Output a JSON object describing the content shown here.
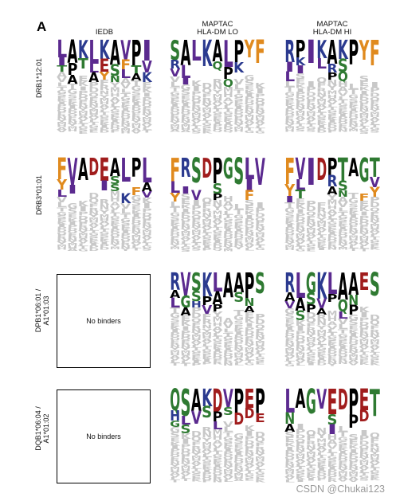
{
  "panel_letter": "A",
  "column_headers": [
    {
      "line1": "",
      "line2": "IEDB"
    },
    {
      "line1": "MAPTAC",
      "line2": "HLA-DM LO"
    },
    {
      "line1": "MAPTAC",
      "line2": "HLA-DM HI"
    }
  ],
  "rows": [
    {
      "label_line1": "DRB1*12:01",
      "label_line2": "",
      "logos": [
        {
          "top": "LAKLKAVPI",
          "second": "IPTLESFTV",
          "third": "TA AYNLAK"
        },
        {
          "top": "SALKALPYF",
          "second": "RL  QPK  ",
          "third": "VI   Q   "
        },
        {
          "top": "RPIKAKPYF",
          "second": "IK LRS   ",
          "third": "LI  PQ   "
        }
      ],
      "no_binders": false
    },
    {
      "label_line1": "DRB3*01:01",
      "label_line2": "",
      "logos": [
        {
          "top": "FVADEALPL",
          "second": "YI  IS  A",
          "third": "L    SKFV"
        },
        {
          "top": "FRSDPGSLV",
          "second": "L   S  I ",
          "third": "YIV P  F "
        },
        {
          "top": "FVIDPTAGT",
          "second": "YL  RS  V",
          "third": "IT  AN FY"
        }
      ],
      "no_binders": false
    },
    {
      "label_line1": "DPB1*06:01 /",
      "label_line2": "A1*01:03",
      "logos": [
        {
          "top": "",
          "second": "",
          "third": ""
        },
        {
          "top": "RVSKLAAPS",
          "second": "AGSPA SN ",
          "third": "LAHVP  A "
        },
        {
          "top": "RLGKLAAES",
          "second": "AASVPQN  ",
          "third": "VSPA LP  "
        }
      ],
      "no_binders": true,
      "no_binders_text": "No binders"
    },
    {
      "label_line1": "DQB1*06:04 /",
      "label_line2": "A1*01:02",
      "logos": [
        {
          "top": "",
          "second": "",
          "third": ""
        },
        {
          "top": "QSAKDVPEP",
          "second": "HLVSPSDDE",
          "third": "GS  L    "
        },
        {
          "top": "LAGVEDPET",
          "second": "N   S PD ",
          "third": "A   I    "
        }
      ],
      "no_binders": true,
      "no_binders_text": "No binders"
    }
  ],
  "letter_colors": {
    "hydrophobic": "#5b2a8f",
    "polar": "#2f7a32",
    "acidic": "#a01c1c",
    "basic": "#2b3a8f",
    "aromatic": "#e08a1e",
    "neutral": "#000000",
    "background": "#c8c8c8"
  },
  "watermark": "CSDN @Chukai123"
}
